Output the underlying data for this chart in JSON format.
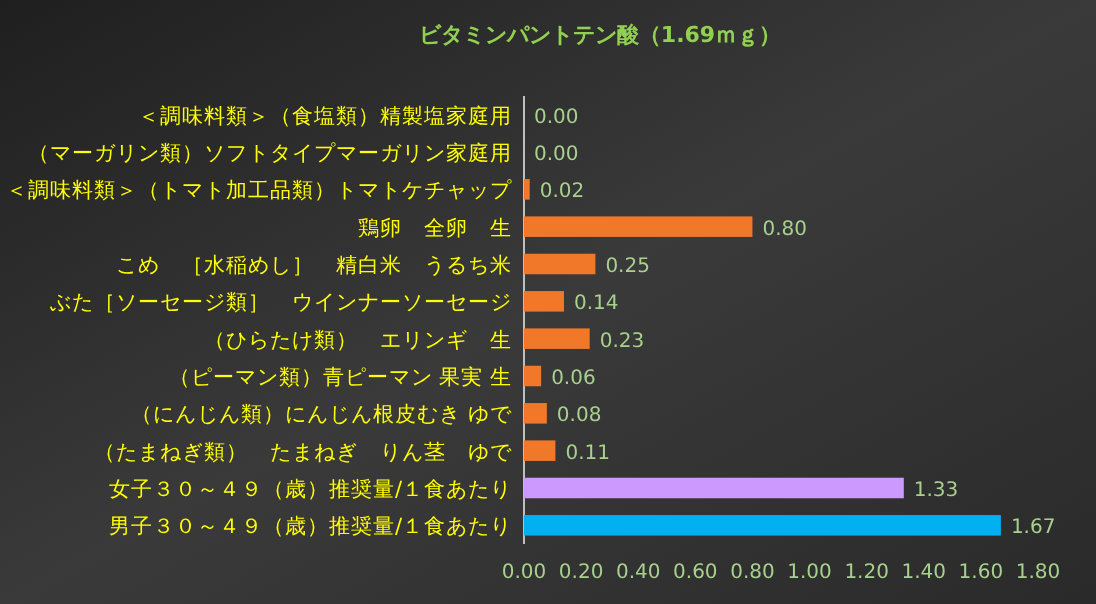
{
  "chart_data": {
    "type": "bar",
    "orientation": "horizontal",
    "title": "ビタミンパントテン酸（1.69ｍｇ）",
    "categories": [
      "＜調味料類＞（食塩類）精製塩家庭用",
      "（マーガリン類）ソフトタイプマーガリン家庭用",
      "＜調味料類＞（トマト加工品類）トマトケチャップ",
      "鶏卵　全卵　生",
      "こめ　［水稲めし］　精白米　うるち米",
      "ぶた［ソーセージ類］　ウインナーソーセージ",
      "（ひらたけ類）　エリンギ　生",
      "（ピーマン類）青ピーマン 果実 生",
      "（にんじん類）にんじん根皮むき ゆで",
      "（たまねぎ類）　たまねぎ　りん茎　ゆで",
      "女子３０～４９（歳）推奨量/１食あたり",
      "男子３０～４９（歳）推奨量/１食あたり"
    ],
    "values": [
      0.0,
      0.0,
      0.02,
      0.8,
      0.25,
      0.14,
      0.23,
      0.06,
      0.08,
      0.11,
      1.33,
      1.67
    ],
    "value_labels": [
      "0.00",
      "0.00",
      "0.02",
      "0.80",
      "0.25",
      "0.14",
      "0.23",
      "0.06",
      "0.08",
      "0.11",
      "1.33",
      "1.67"
    ],
    "colors": [
      "#f07828",
      "#f07828",
      "#f07828",
      "#f07828",
      "#f07828",
      "#f07828",
      "#f07828",
      "#f07828",
      "#f07828",
      "#f07828",
      "#cc99ff",
      "#00b0f0"
    ],
    "xlim": [
      0,
      1.8
    ],
    "xticks": [
      {
        "value": 0,
        "label": "0.00"
      },
      {
        "value": 0.2,
        "label": "0.20"
      },
      {
        "value": 0.4,
        "label": "0.40"
      },
      {
        "value": 0.6,
        "label": "0.60"
      },
      {
        "value": 0.8,
        "label": "0.80"
      },
      {
        "value": 1.0,
        "label": "1.00"
      },
      {
        "value": 1.2,
        "label": "1.20"
      },
      {
        "value": 1.4,
        "label": "1.40"
      },
      {
        "value": 1.6,
        "label": "1.60"
      },
      {
        "value": 1.8,
        "label": "1.80"
      }
    ]
  }
}
